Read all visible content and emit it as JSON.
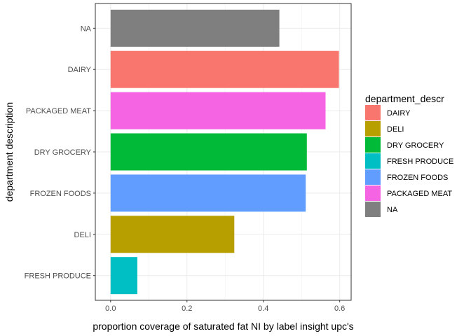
{
  "chart_data": {
    "type": "bar",
    "orientation": "horizontal",
    "categories": [
      "FRESH PRODUCE",
      "DELI",
      "FROZEN FOODS",
      "DRY GROCERY",
      "PACKAGED MEAT",
      "DAIRY",
      "NA"
    ],
    "values": [
      0.07,
      0.324,
      0.511,
      0.514,
      0.563,
      0.598,
      0.442
    ],
    "colors": [
      "#00BFC4",
      "#B79F00",
      "#619CFF",
      "#00BA38",
      "#F564E3",
      "#F8766D",
      "#7F7F7F"
    ],
    "xlabel": "proportion coverage of saturated fat NI by label insight upc's",
    "ylabel": "department description",
    "xlim": [
      -0.04,
      0.63
    ],
    "xticks": [
      0.0,
      0.2,
      0.4,
      0.6
    ],
    "xtick_labels": [
      "0.0",
      "0.2",
      "0.4",
      "0.6"
    ],
    "grid": true,
    "legend": {
      "title": "department_descr",
      "placement": "right",
      "entries": [
        {
          "label": "DAIRY",
          "color": "#F8766D"
        },
        {
          "label": "DELI",
          "color": "#B79F00"
        },
        {
          "label": "DRY GROCERY",
          "color": "#00BA38"
        },
        {
          "label": "FRESH PRODUCE",
          "color": "#00BFC4"
        },
        {
          "label": "FROZEN FOODS",
          "color": "#619CFF"
        },
        {
          "label": "PACKAGED MEAT",
          "color": "#F564E3"
        },
        {
          "label": "NA",
          "color": "#7F7F7F"
        }
      ]
    }
  }
}
